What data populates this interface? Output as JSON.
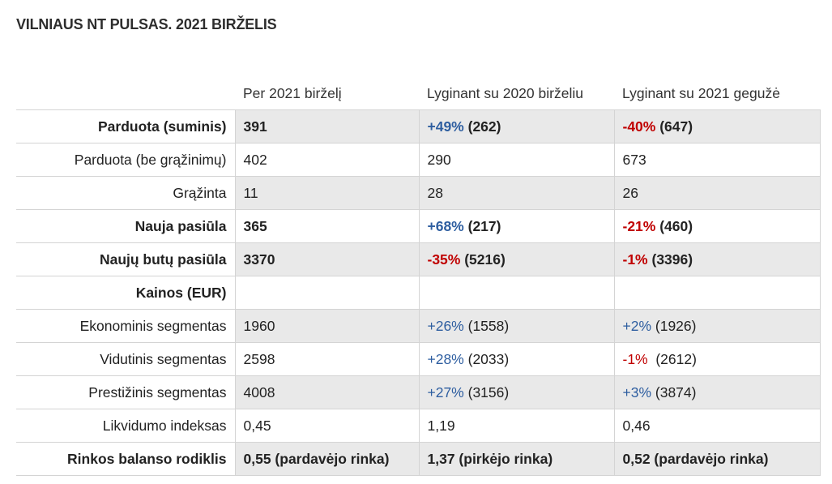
{
  "title": "VILNIAUS NT PULSAS. 2021 BIRŽELIS",
  "colors": {
    "positive": "#2e5ea0",
    "negative": "#c00000",
    "shade": "#e9e9e9"
  },
  "headers": [
    "",
    "Per 2021 birželį",
    "Lyginant su 2020 birželiu",
    "Lyginant su 2021 gegužė"
  ],
  "rows": [
    {
      "label": "Parduota (suminis)",
      "bold": true,
      "shade": true,
      "c1": "391",
      "c2_change": "+49%",
      "c2_change_sign": "pos",
      "c2_rest": " (262)",
      "c3_change": "-40%",
      "c3_change_sign": "neg",
      "c3_rest": " (647)"
    },
    {
      "label": "Parduota (be grąžinimų)",
      "bold": false,
      "shade": false,
      "c1": "402",
      "c2_change": "",
      "c2_change_sign": "",
      "c2_rest": "290",
      "c3_change": "",
      "c3_change_sign": "",
      "c3_rest": "673"
    },
    {
      "label": "Grąžinta",
      "bold": false,
      "shade": true,
      "c1": "11",
      "c2_change": "",
      "c2_change_sign": "",
      "c2_rest": "28",
      "c3_change": "",
      "c3_change_sign": "",
      "c3_rest": "26"
    },
    {
      "label": "Nauja pasiūla",
      "bold": true,
      "shade": false,
      "c1": "365",
      "c2_change": "+68%",
      "c2_change_sign": "pos",
      "c2_rest": " (217)",
      "c3_change": "-21%",
      "c3_change_sign": "neg",
      "c3_rest": " (460)"
    },
    {
      "label": "Naujų butų pasiūla",
      "bold": true,
      "shade": true,
      "c1": "3370",
      "c2_change": "-35%",
      "c2_change_sign": "neg",
      "c2_rest": " (5216)",
      "c3_change": "-1%",
      "c3_change_sign": "neg",
      "c3_rest": " (3396)"
    },
    {
      "label": "Kainos (EUR)",
      "bold": true,
      "shade": false,
      "c1": "",
      "c2_change": "",
      "c2_change_sign": "",
      "c2_rest": "",
      "c3_change": "",
      "c3_change_sign": "",
      "c3_rest": ""
    },
    {
      "label": "Ekonominis segmentas",
      "bold": false,
      "shade": true,
      "c1": "1960",
      "c2_change": "+26%",
      "c2_change_sign": "pos",
      "c2_rest": " (1558)",
      "c3_change": "+2%",
      "c3_change_sign": "pos",
      "c3_rest": " (1926)"
    },
    {
      "label": "Vidutinis segmentas",
      "bold": false,
      "shade": false,
      "c1": "2598",
      "c2_change": "+28%",
      "c2_change_sign": "pos",
      "c2_rest": " (2033)",
      "c3_change": "-1%",
      "c3_change_sign": "neg",
      "c3_rest": "  (2612)"
    },
    {
      "label": "Prestižinis segmentas",
      "bold": false,
      "shade": true,
      "c1": "4008",
      "c2_change": "+27%",
      "c2_change_sign": "pos",
      "c2_rest": " (3156)",
      "c3_change": "+3%",
      "c3_change_sign": "pos",
      "c3_rest": " (3874)"
    },
    {
      "label": "Likvidumo indeksas",
      "bold": false,
      "shade": false,
      "c1": "0,45",
      "c2_change": "",
      "c2_change_sign": "",
      "c2_rest": "1,19",
      "c3_change": "",
      "c3_change_sign": "",
      "c3_rest": "0,46"
    },
    {
      "label": "Rinkos balanso rodiklis",
      "bold": true,
      "shade": true,
      "c1": "0,55 (pardavėjo rinka)",
      "c2_change": "",
      "c2_change_sign": "",
      "c2_rest": "1,37 (pirkėjo rinka)",
      "c3_change": "",
      "c3_change_sign": "",
      "c3_rest": "0,52 (pardavėjo rinka)"
    }
  ]
}
